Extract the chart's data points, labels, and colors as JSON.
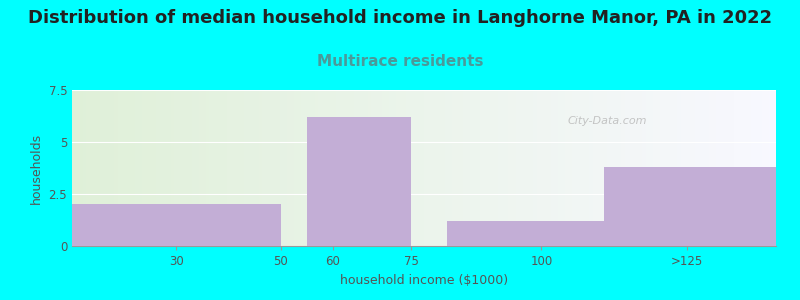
{
  "title": "Distribution of median household income in Langhorne Manor, PA in 2022",
  "subtitle": "Multirace residents",
  "xlabel": "household income ($1000)",
  "ylabel": "households",
  "background_color": "#00FFFF",
  "plot_bg_color_left": "#dff0d8",
  "plot_bg_color_right": "#f8f8ff",
  "bar_color": "#c3aed6",
  "bar_edge_color": "#c3aed6",
  "watermark": "City-Data.com",
  "ylim": [
    0,
    7.5
  ],
  "yticks": [
    0,
    2.5,
    5,
    7.5
  ],
  "title_fontsize": 13,
  "subtitle_fontsize": 11,
  "title_color": "#222222",
  "subtitle_color": "#4a9a9a",
  "axis_label_fontsize": 9,
  "tick_fontsize": 8.5,
  "tick_color": "#555555",
  "bar_left_edges": [
    10,
    50,
    55,
    75,
    82,
    112
  ],
  "bar_right_edges": [
    50,
    55,
    75,
    82,
    112,
    145
  ],
  "bar_heights": [
    2.0,
    0.0,
    6.2,
    0.0,
    1.2,
    3.8
  ],
  "xtick_positions": [
    30,
    50,
    60,
    75,
    100
  ],
  "xtick_labels": [
    "30",
    "50",
    "60",
    "75",
    "100"
  ],
  "xlim": [
    10,
    145
  ]
}
